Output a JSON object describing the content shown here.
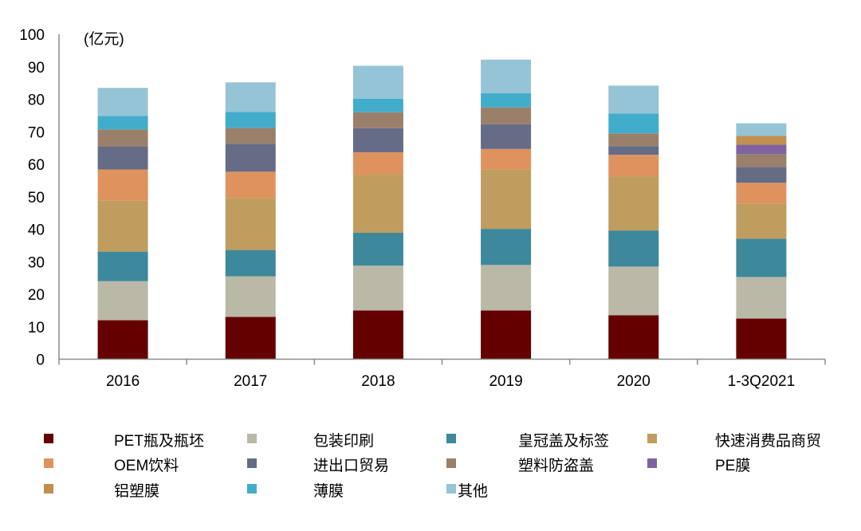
{
  "chart_data": {
    "type": "bar",
    "stacked": true,
    "title": "",
    "unit_label": "(亿元)",
    "xlabel": "",
    "ylabel": "(亿元)",
    "ylim": [
      0,
      100
    ],
    "yticks": [
      0,
      10,
      20,
      30,
      40,
      50,
      60,
      70,
      80,
      90,
      100
    ],
    "grid": false,
    "legend_position": "bottom",
    "categories": [
      "2016",
      "2017",
      "2018",
      "2019",
      "2020",
      "1-3Q2021"
    ],
    "series": [
      {
        "name": "PET瓶及瓶坯",
        "color": "#650000",
        "values": [
          12.0,
          13.0,
          15.0,
          15.0,
          13.5,
          12.5
        ]
      },
      {
        "name": "包装印刷",
        "color": "#BAB8A7",
        "values": [
          12.0,
          12.5,
          13.8,
          14.0,
          15.0,
          12.8
        ]
      },
      {
        "name": "皇冠盖及标签",
        "color": "#3D889B",
        "values": [
          9.1,
          8.1,
          10.1,
          11.1,
          11.1,
          11.8
        ]
      },
      {
        "name": "快速消费品商贸",
        "color": "#BF9D5E",
        "values": [
          15.7,
          16.0,
          17.9,
          18.2,
          16.7,
          10.8
        ]
      },
      {
        "name": "OEM饮料",
        "color": "#DE935F",
        "values": [
          9.6,
          8.1,
          6.9,
          6.4,
          6.6,
          6.4
        ]
      },
      {
        "name": "进出口贸易",
        "color": "#666B86",
        "values": [
          7.1,
          8.6,
          7.4,
          7.6,
          2.7,
          4.9
        ]
      },
      {
        "name": "塑料防盗盖",
        "color": "#9A806A",
        "values": [
          5.2,
          4.9,
          4.9,
          5.2,
          3.9,
          3.9
        ]
      },
      {
        "name": "PE膜",
        "color": "#7F63A0",
        "values": [
          0,
          0,
          0,
          0,
          0,
          2.9
        ]
      },
      {
        "name": "铝塑膜",
        "color": "#C18F4E",
        "values": [
          0,
          0,
          0,
          0,
          0,
          2.7
        ]
      },
      {
        "name": "薄膜",
        "color": "#42ADCB",
        "values": [
          4.2,
          4.9,
          4.2,
          4.4,
          6.1,
          0
        ]
      },
      {
        "name": "其他",
        "color": "#95C4D6",
        "values": [
          8.6,
          9.1,
          10.1,
          10.3,
          8.6,
          3.9
        ]
      }
    ],
    "totals_approx": [
      83.5,
      85.2,
      90.3,
      92.2,
      84.2,
      72.6
    ]
  },
  "legend": {
    "rows": [
      [
        {
          "label": "PET瓶及瓶坯",
          "color": "#650000"
        },
        {
          "label": "包装印刷",
          "color": "#BAB8A7"
        },
        {
          "label": "皇冠盖及标签",
          "color": "#3D889B"
        },
        {
          "label": "快速消费品商贸",
          "color": "#BF9D5E"
        }
      ],
      [
        {
          "label": "OEM饮料",
          "color": "#DE935F"
        },
        {
          "label": "进出口贸易",
          "color": "#666B86"
        },
        {
          "label": "塑料防盗盖",
          "color": "#9A806A"
        },
        {
          "label": "PE膜",
          "color": "#7F63A0"
        }
      ],
      [
        {
          "label": "铝塑膜",
          "color": "#C18F4E"
        },
        {
          "label": "薄膜",
          "color": "#42ADCB"
        },
        {
          "label": "其他",
          "color": "#95C4D6"
        }
      ]
    ]
  },
  "axis": {
    "color": "#8C8C8C"
  }
}
